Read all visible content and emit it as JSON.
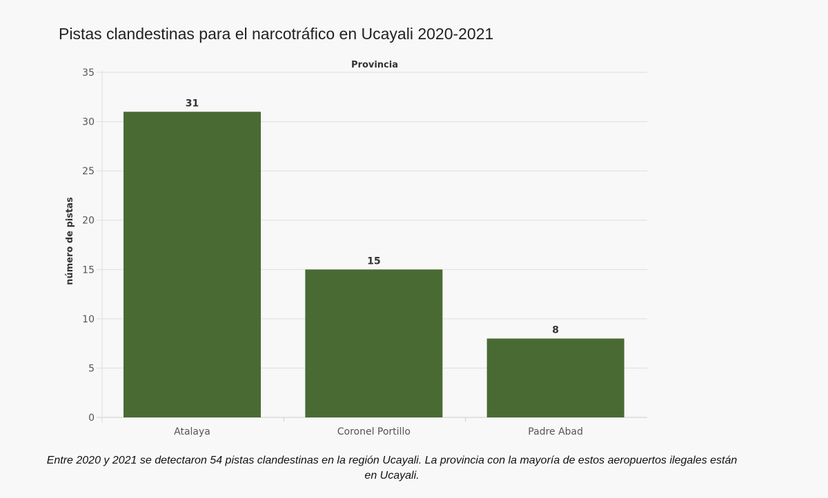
{
  "chart_data": {
    "type": "bar",
    "title": "Pistas clandestinas para el narcotráfico en Ucayali 2020-2021",
    "column_header": "Provincia",
    "xlabel": "",
    "ylabel": "número de pistas",
    "categories": [
      "Atalaya",
      "Coronel Portillo",
      "Padre Abad"
    ],
    "values": [
      31,
      15,
      8
    ],
    "data_labels": [
      "31",
      "15",
      "8"
    ],
    "ylim": [
      0,
      35
    ],
    "yticks": [
      0,
      5,
      10,
      15,
      20,
      25,
      30,
      35
    ],
    "grid": true,
    "bar_color": "#4a6a33"
  },
  "caption": "Entre 2020 y 2021 se detectaron 54 pistas clandestinas en la región Ucayali. La provincia con la mayoría de estos aeropuertos ilegales están en Ucayali."
}
